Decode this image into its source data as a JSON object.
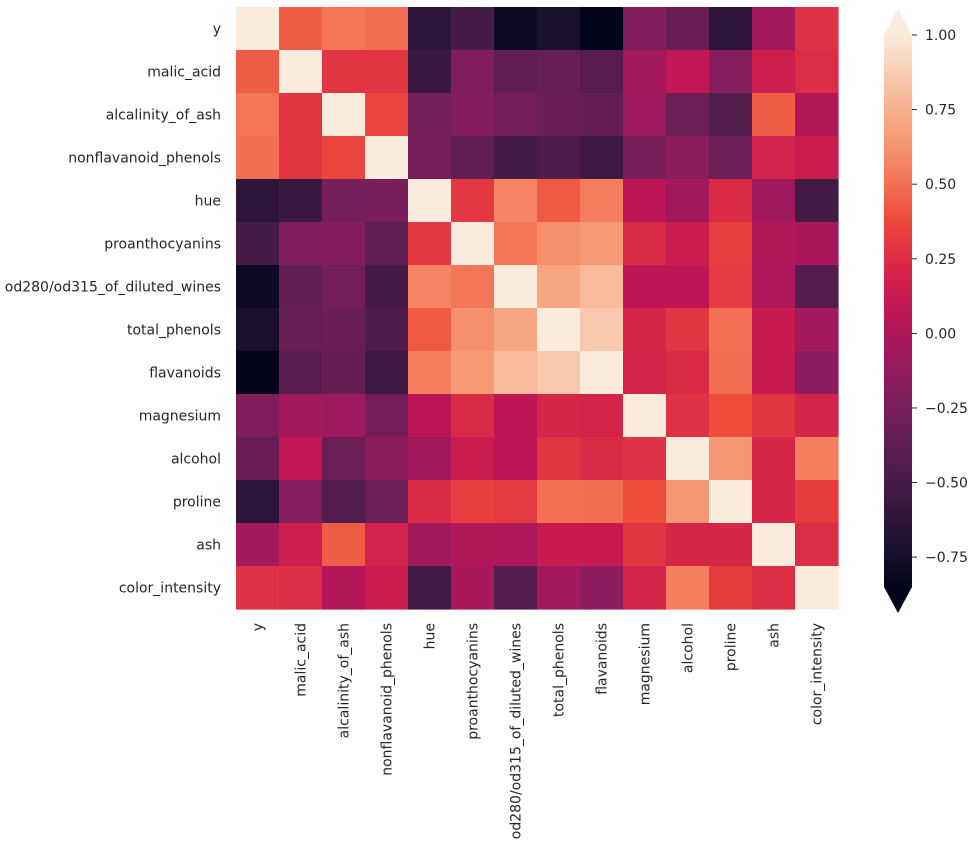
{
  "chart_data": {
    "type": "heatmap",
    "title": "",
    "xlabel": "",
    "ylabel": "",
    "labels": [
      "y",
      "malic_acid",
      "alcalinity_of_ash",
      "nonflavanoid_phenols",
      "hue",
      "proanthocyanins",
      "od280/od315_of_diluted_wines",
      "total_phenols",
      "flavanoids",
      "magnesium",
      "alcohol",
      "proline",
      "ash",
      "color_intensity"
    ],
    "matrix": [
      [
        1.0,
        0.44,
        0.52,
        0.49,
        -0.62,
        -0.5,
        -0.79,
        -0.72,
        -0.85,
        -0.21,
        -0.33,
        -0.63,
        -0.05,
        0.27
      ],
      [
        0.44,
        1.0,
        0.29,
        0.29,
        -0.56,
        -0.22,
        -0.37,
        -0.34,
        -0.41,
        -0.05,
        0.09,
        -0.19,
        0.16,
        0.25
      ],
      [
        0.52,
        0.29,
        1.0,
        0.36,
        -0.27,
        -0.2,
        -0.28,
        -0.32,
        -0.35,
        -0.08,
        -0.31,
        -0.44,
        0.44,
        0.02
      ],
      [
        0.49,
        0.29,
        0.36,
        1.0,
        -0.26,
        -0.37,
        -0.5,
        -0.45,
        -0.54,
        -0.26,
        -0.16,
        -0.31,
        0.19,
        0.14
      ],
      [
        -0.62,
        -0.56,
        -0.27,
        -0.26,
        1.0,
        0.3,
        0.57,
        0.43,
        0.54,
        0.06,
        -0.07,
        0.24,
        -0.07,
        -0.52
      ],
      [
        -0.5,
        -0.22,
        -0.2,
        -0.37,
        0.3,
        1.0,
        0.52,
        0.61,
        0.65,
        0.24,
        0.14,
        0.33,
        0.01,
        -0.03
      ],
      [
        -0.79,
        -0.37,
        -0.28,
        -0.5,
        0.57,
        0.52,
        1.0,
        0.7,
        0.79,
        0.07,
        0.07,
        0.31,
        0.0,
        -0.43
      ],
      [
        -0.72,
        -0.34,
        -0.32,
        -0.45,
        0.43,
        0.61,
        0.7,
        1.0,
        0.86,
        0.21,
        0.29,
        0.5,
        0.13,
        -0.06
      ],
      [
        -0.85,
        -0.41,
        -0.35,
        -0.54,
        0.54,
        0.65,
        0.79,
        0.86,
        1.0,
        0.2,
        0.24,
        0.49,
        0.12,
        -0.17
      ],
      [
        -0.21,
        -0.05,
        -0.08,
        -0.26,
        0.06,
        0.24,
        0.07,
        0.21,
        0.2,
        1.0,
        0.27,
        0.39,
        0.29,
        0.2
      ],
      [
        -0.33,
        0.09,
        -0.31,
        -0.16,
        -0.07,
        0.14,
        0.07,
        0.29,
        0.24,
        0.27,
        1.0,
        0.64,
        0.21,
        0.55
      ],
      [
        -0.63,
        -0.19,
        -0.44,
        -0.31,
        0.24,
        0.33,
        0.31,
        0.5,
        0.49,
        0.39,
        0.64,
        1.0,
        0.22,
        0.32
      ],
      [
        -0.05,
        0.16,
        0.44,
        0.19,
        -0.07,
        0.01,
        0.0,
        0.13,
        0.12,
        0.29,
        0.21,
        0.22,
        1.0,
        0.26
      ],
      [
        0.27,
        0.25,
        0.02,
        0.14,
        -0.52,
        -0.03,
        -0.43,
        -0.06,
        -0.17,
        0.2,
        0.55,
        0.32,
        0.26,
        1.0
      ]
    ],
    "colorbar": {
      "ticks": [
        1.0,
        0.75,
        0.5,
        0.25,
        0.0,
        -0.25,
        -0.5,
        -0.75
      ],
      "tick_labels": [
        "1.00",
        "0.75",
        "0.50",
        "0.25",
        "0.00",
        "−0.25",
        "−0.50",
        "−0.75"
      ],
      "range": [
        -0.85,
        1.0
      ],
      "colormap": "rocket",
      "extend": "both"
    },
    "colors": {
      "stops": [
        "#03051a",
        "#1e1231",
        "#3e1a43",
        "#5c1e51",
        "#7d1e5c",
        "#9e195e",
        "#be1555",
        "#da2747",
        "#ee4b3b",
        "#f47c5c",
        "#f6a47f",
        "#f8c6aa",
        "#faebdd"
      ]
    }
  }
}
